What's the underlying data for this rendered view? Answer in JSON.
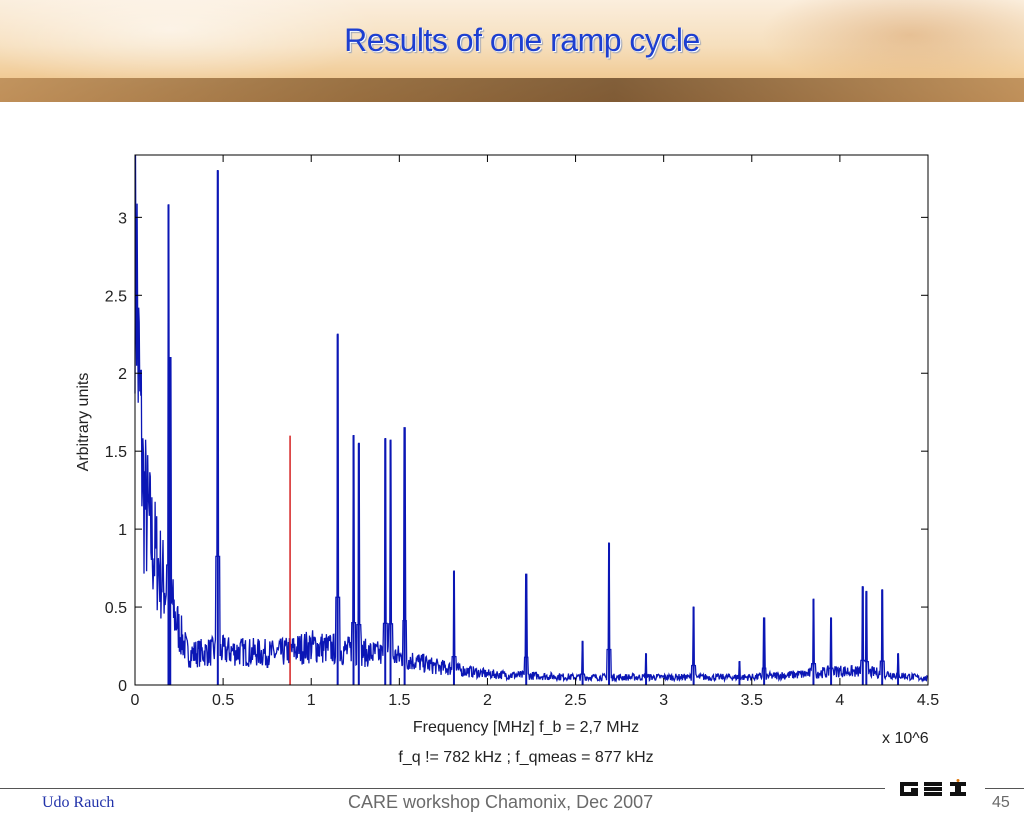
{
  "slide": {
    "title": "Results of one ramp cycle",
    "author": "Udo Rauch",
    "event": "CARE workshop Chamonix, Dec 2007",
    "page": "45",
    "logo_text": "GSI"
  },
  "chart_data": {
    "type": "line",
    "title": "",
    "xlabel": "Frequency [MHz] f_b = 2,7 MHz",
    "xlabel_line2": "f_q != 782 kHz ; f_qmeas = 877 kHz",
    "ylabel": "Arbitrary units",
    "x_multiplier": "x 10^6",
    "xlim": [
      0,
      4.5
    ],
    "ylim": [
      0,
      3.4
    ],
    "xticks": [
      0,
      0.5,
      1,
      1.5,
      2,
      2.5,
      3,
      3.5,
      4,
      4.5
    ],
    "xtick_labels": [
      "0",
      "0.5",
      "1",
      "1.5",
      "2",
      "2.5",
      "3",
      "3.5",
      "4",
      "4.5"
    ],
    "yticks": [
      0,
      0.5,
      1,
      1.5,
      2,
      2.5,
      3
    ],
    "ytick_labels": [
      "0",
      "0.5",
      "1",
      "1.5",
      "2",
      "2.5",
      "3"
    ],
    "grid": false,
    "colors": {
      "spectrum": "#0b16b5",
      "marker": "#d42020"
    },
    "series": [
      {
        "color": "#0b16b5",
        "baseline": [
          [
            0.0,
            3.4
          ],
          [
            0.02,
            2.0
          ],
          [
            0.05,
            1.2
          ],
          [
            0.1,
            0.9
          ],
          [
            0.15,
            0.7
          ],
          [
            0.2,
            0.55
          ],
          [
            0.25,
            0.35
          ],
          [
            0.3,
            0.2
          ],
          [
            0.5,
            0.22
          ],
          [
            0.8,
            0.2
          ],
          [
            1.0,
            0.25
          ],
          [
            1.2,
            0.22
          ],
          [
            1.5,
            0.18
          ],
          [
            1.7,
            0.12
          ],
          [
            2.0,
            0.07
          ],
          [
            2.5,
            0.05
          ],
          [
            3.0,
            0.05
          ],
          [
            3.5,
            0.05
          ],
          [
            3.8,
            0.07
          ],
          [
            4.0,
            0.09
          ],
          [
            4.2,
            0.08
          ],
          [
            4.5,
            0.04
          ]
        ],
        "peaks": [
          [
            0.19,
            3.08
          ],
          [
            0.2,
            2.1
          ],
          [
            0.47,
            3.3
          ],
          [
            1.15,
            2.25
          ],
          [
            1.24,
            1.6
          ],
          [
            1.27,
            1.55
          ],
          [
            1.42,
            1.58
          ],
          [
            1.45,
            1.57
          ],
          [
            1.53,
            1.65
          ],
          [
            1.81,
            0.73
          ],
          [
            2.22,
            0.71
          ],
          [
            2.54,
            0.28
          ],
          [
            2.69,
            0.91
          ],
          [
            2.9,
            0.2
          ],
          [
            3.17,
            0.5
          ],
          [
            3.43,
            0.15
          ],
          [
            3.57,
            0.43
          ],
          [
            3.85,
            0.55
          ],
          [
            3.95,
            0.43
          ],
          [
            4.13,
            0.63
          ],
          [
            4.15,
            0.6
          ],
          [
            4.24,
            0.61
          ],
          [
            4.33,
            0.2
          ]
        ]
      },
      {
        "name": "",
        "color": "#d42020",
        "x": [
          0.88,
          0.88
        ],
        "y": [
          0,
          1.6
        ]
      }
    ]
  }
}
